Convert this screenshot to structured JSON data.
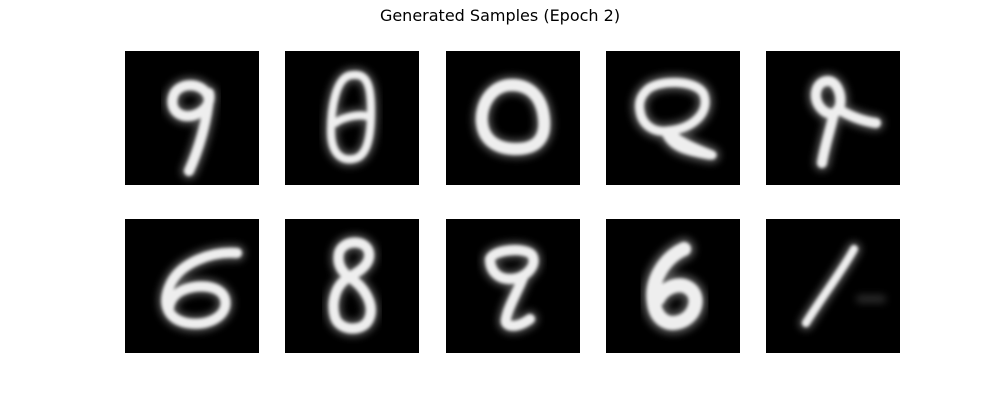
{
  "figure": {
    "title": "Generated Samples (Epoch 2)"
  },
  "samples": [
    {
      "row": 1,
      "col": 1,
      "depicts": "digit 9"
    },
    {
      "row": 1,
      "col": 2,
      "depicts": "digit 0"
    },
    {
      "row": 1,
      "col": 3,
      "depicts": "digit 0"
    },
    {
      "row": 1,
      "col": 4,
      "depicts": "digit 2"
    },
    {
      "row": 1,
      "col": 5,
      "depicts": "digit 4"
    },
    {
      "row": 2,
      "col": 1,
      "depicts": "digit 6"
    },
    {
      "row": 2,
      "col": 2,
      "depicts": "digit 8"
    },
    {
      "row": 2,
      "col": 3,
      "depicts": "digit 9"
    },
    {
      "row": 2,
      "col": 4,
      "depicts": "digit 6"
    },
    {
      "row": 2,
      "col": 5,
      "depicts": "digit 1"
    }
  ],
  "colors": {
    "background": "#ffffff",
    "tile": "#000000",
    "stroke": "#ffffff"
  }
}
